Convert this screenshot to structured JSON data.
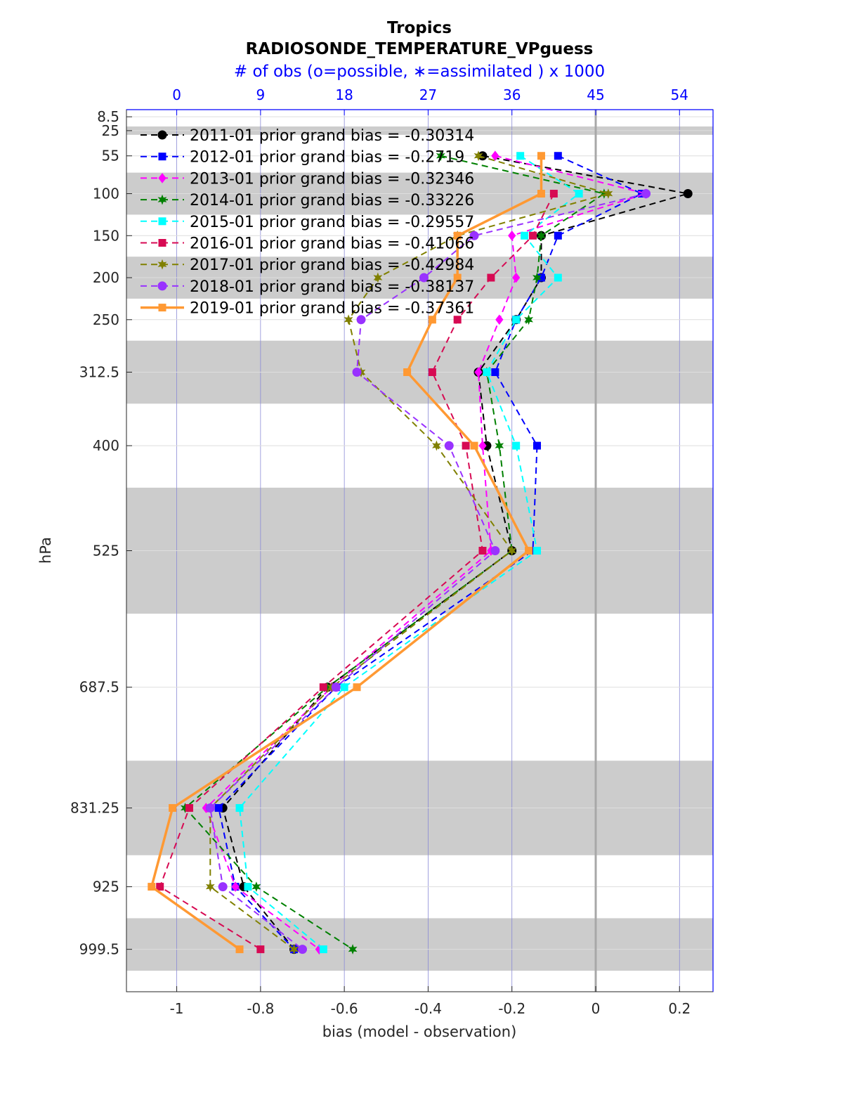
{
  "chart_data": {
    "type": "line",
    "title": "Tropics",
    "subtitle": "RADIOSONDE_TEMPERATURE_VPguess",
    "top_axis_label": "# of obs (o=possible, ∗=assimilated ) x 1000",
    "xlabel": "bias (model - observation)",
    "ylabel": "hPa",
    "xlim": [
      -1.12,
      0.28
    ],
    "x_ticks": [
      "-1",
      "-0.8",
      "-0.6",
      "-0.4",
      "-0.2",
      "0",
      "0.2"
    ],
    "x_tick_values": [
      -1,
      -0.8,
      -0.6,
      -0.4,
      -0.2,
      0,
      0.2
    ],
    "top_ticks": [
      "0",
      "9",
      "18",
      "27",
      "36",
      "45",
      "54"
    ],
    "top_tick_values": [
      0,
      9,
      18,
      27,
      36,
      45,
      54
    ],
    "levels": [
      8.5,
      25,
      55,
      100,
      150,
      200,
      250,
      312.5,
      400,
      525,
      687.5,
      831.25,
      925,
      999.5
    ],
    "level_labels": [
      "8.5",
      "25",
      "55",
      "100",
      "150",
      "200",
      "250",
      "312.5",
      "400",
      "525",
      "687.5",
      "831.25",
      "925",
      "999.5"
    ],
    "shaded_layers": [
      [
        20,
        30
      ],
      [
        75,
        125
      ],
      [
        175,
        225
      ],
      [
        275,
        350
      ],
      [
        450,
        600
      ],
      [
        775,
        887.5
      ],
      [
        962.5,
        1025
      ]
    ],
    "grid": true,
    "legend_position": "top-left",
    "series": [
      {
        "name": "2011-01 prior grand bias = -0.30314",
        "color": "#000000",
        "marker": "circle",
        "dash": true,
        "bias": [
          null,
          null,
          -0.27,
          0.22,
          -0.13,
          -0.13,
          -0.19,
          -0.28,
          -0.26,
          -0.2,
          -0.64,
          -0.89,
          -0.84,
          -0.72
        ],
        "possible": [
          null,
          null,
          null,
          null,
          null,
          null,
          null,
          null,
          null,
          null,
          null,
          null,
          null,
          null
        ]
      },
      {
        "name": "2012-01 prior grand bias = -0.2719",
        "color": "#0000ff",
        "marker": "square",
        "dash": true,
        "bias": [
          null,
          null,
          -0.09,
          0.11,
          -0.09,
          -0.13,
          -0.19,
          -0.24,
          -0.14,
          -0.15,
          -0.62,
          -0.9,
          -0.86,
          -0.72
        ],
        "possible": [
          null,
          null,
          null,
          null,
          null,
          null,
          null,
          null,
          null,
          null,
          null,
          null,
          null,
          null
        ]
      },
      {
        "name": "2013-01 prior grand bias = -0.32346",
        "color": "#ff00ff",
        "marker": "diamond",
        "dash": true,
        "bias": [
          null,
          null,
          -0.24,
          0.12,
          -0.2,
          -0.19,
          -0.23,
          -0.28,
          -0.27,
          -0.25,
          -0.63,
          -0.93,
          -0.86,
          -0.66
        ],
        "possible": [
          null,
          null,
          null,
          null,
          null,
          null,
          null,
          null,
          null,
          null,
          null,
          null,
          null,
          null
        ]
      },
      {
        "name": "2014-01 prior grand bias = -0.33226",
        "color": "#008000",
        "marker": "hexagram",
        "dash": true,
        "bias": [
          null,
          null,
          -0.37,
          0.02,
          -0.13,
          -0.14,
          -0.16,
          -0.26,
          -0.23,
          -0.2,
          -0.64,
          -0.98,
          -0.81,
          -0.58
        ],
        "possible": [
          null,
          null,
          null,
          null,
          null,
          null,
          null,
          null,
          null,
          null,
          null,
          null,
          null,
          null
        ]
      },
      {
        "name": "2015-01 prior grand bias = -0.29557",
        "color": "#00ffff",
        "marker": "square",
        "dash": true,
        "bias": [
          null,
          null,
          -0.18,
          -0.04,
          -0.17,
          -0.09,
          -0.19,
          -0.26,
          -0.19,
          -0.14,
          -0.6,
          -0.85,
          -0.83,
          -0.65
        ],
        "possible": [
          null,
          null,
          null,
          null,
          null,
          null,
          null,
          null,
          null,
          null,
          null,
          null,
          null,
          null
        ]
      },
      {
        "name": "2016-01 prior grand bias = -0.41066",
        "color": "#d70a53",
        "marker": "square",
        "dash": true,
        "bias": [
          null,
          null,
          null,
          -0.1,
          -0.15,
          -0.25,
          -0.33,
          -0.39,
          -0.31,
          -0.27,
          -0.65,
          -0.97,
          -1.04,
          -0.8
        ],
        "possible": [
          null,
          null,
          null,
          null,
          null,
          null,
          null,
          null,
          null,
          null,
          null,
          null,
          null,
          null
        ]
      },
      {
        "name": "2017-01 prior grand bias = -0.42984",
        "color": "#808000",
        "marker": "hexagram",
        "dash": true,
        "bias": [
          null,
          null,
          -0.28,
          0.03,
          -0.33,
          -0.52,
          -0.59,
          -0.56,
          -0.38,
          -0.2,
          -0.63,
          -0.92,
          -0.92,
          -0.72
        ],
        "possible": [
          null,
          null,
          null,
          null,
          null,
          null,
          null,
          null,
          null,
          null,
          null,
          null,
          null,
          null
        ]
      },
      {
        "name": "2018-01 prior grand bias = -0.38137",
        "color": "#9932ff",
        "marker": "circle",
        "dash": true,
        "bias": [
          null,
          null,
          null,
          0.12,
          -0.29,
          -0.41,
          -0.56,
          -0.57,
          -0.35,
          -0.24,
          -0.62,
          -0.92,
          -0.89,
          -0.7
        ],
        "possible": [
          null,
          null,
          null,
          null,
          null,
          null,
          null,
          null,
          null,
          null,
          null,
          null,
          null,
          null
        ]
      },
      {
        "name": "2019-01 prior grand bias = -0.37361",
        "color": "#ff9933",
        "marker": "square",
        "dash": false,
        "bias": [
          null,
          null,
          -0.13,
          -0.13,
          -0.33,
          -0.33,
          -0.39,
          -0.45,
          -0.29,
          -0.16,
          -0.57,
          -1.01,
          -1.06,
          -0.85
        ],
        "possible": [
          null,
          null,
          null,
          null,
          null,
          null,
          null,
          null,
          null,
          null,
          null,
          null,
          null,
          null
        ]
      }
    ]
  }
}
